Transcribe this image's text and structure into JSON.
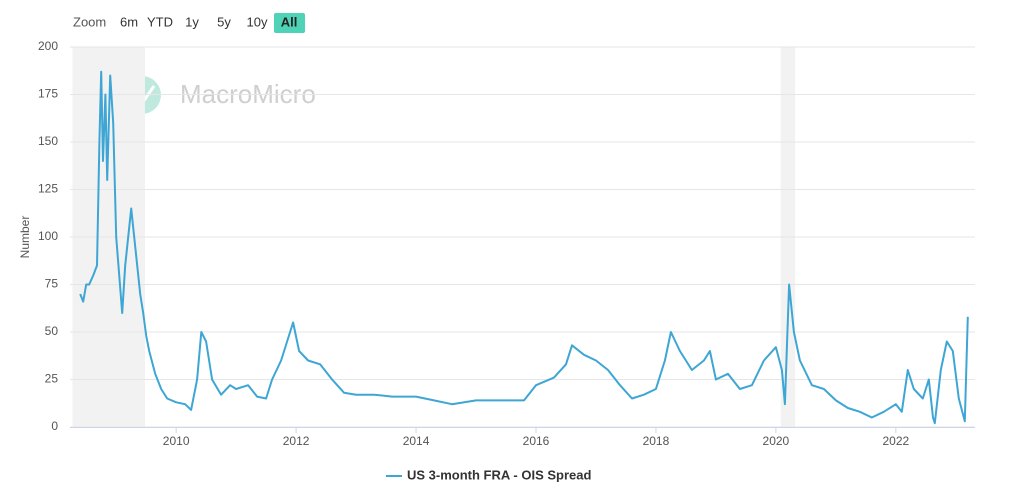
{
  "chart_data": {
    "type": "line",
    "zoom_label": "Zoom",
    "zoom_buttons": [
      "6m",
      "YTD",
      "1y",
      "5y",
      "10y",
      "All"
    ],
    "active_button": "All",
    "watermark": "MacroMicro",
    "y_label": "Number",
    "x": [
      2008.4,
      2008.45,
      2008.5,
      2008.55,
      2008.62,
      2008.68,
      2008.72,
      2008.75,
      2008.78,
      2008.82,
      2008.85,
      2008.9,
      2008.95,
      2009.0,
      2009.05,
      2009.1,
      2009.15,
      2009.2,
      2009.25,
      2009.3,
      2009.35,
      2009.4,
      2009.45,
      2009.5,
      2009.55,
      2009.65,
      2009.75,
      2009.85,
      2010.0,
      2010.15,
      2010.25,
      2010.35,
      2010.42,
      2010.5,
      2010.6,
      2010.75,
      2010.9,
      2011.0,
      2011.2,
      2011.35,
      2011.5,
      2011.6,
      2011.75,
      2011.85,
      2011.95,
      2012.05,
      2012.2,
      2012.4,
      2012.6,
      2012.8,
      2013.0,
      2013.3,
      2013.6,
      2014.0,
      2014.3,
      2014.6,
      2015.0,
      2015.5,
      2015.8,
      2016.0,
      2016.3,
      2016.5,
      2016.6,
      2016.8,
      2017.0,
      2017.2,
      2017.4,
      2017.6,
      2017.8,
      2018.0,
      2018.15,
      2018.25,
      2018.4,
      2018.6,
      2018.8,
      2018.9,
      2019.0,
      2019.2,
      2019.4,
      2019.6,
      2019.8,
      2020.0,
      2020.1,
      2020.15,
      2020.22,
      2020.3,
      2020.4,
      2020.6,
      2020.8,
      2021.0,
      2021.2,
      2021.4,
      2021.6,
      2021.8,
      2022.0,
      2022.1,
      2022.2,
      2022.3,
      2022.45,
      2022.55,
      2022.62,
      2022.65,
      2022.75,
      2022.85,
      2022.95,
      2023.05,
      2023.15,
      2023.2
    ],
    "series": [
      {
        "name": "US 3-month FRA - OIS Spread",
        "color": "#3ea6d4",
        "values": [
          70,
          66,
          75,
          75,
          80,
          85,
          150,
          187,
          140,
          175,
          130,
          185,
          160,
          100,
          80,
          60,
          85,
          100,
          115,
          100,
          85,
          70,
          60,
          48,
          40,
          28,
          20,
          15,
          13,
          12,
          9,
          25,
          50,
          45,
          25,
          17,
          22,
          20,
          22,
          16,
          15,
          25,
          35,
          45,
          55,
          40,
          35,
          33,
          25,
          18,
          17,
          17,
          16,
          16,
          14,
          12,
          14,
          14,
          14,
          22,
          26,
          33,
          43,
          38,
          35,
          30,
          22,
          15,
          17,
          20,
          35,
          50,
          40,
          30,
          35,
          40,
          25,
          28,
          20,
          22,
          35,
          42,
          30,
          12,
          75,
          50,
          35,
          22,
          20,
          14,
          10,
          8,
          5,
          8,
          12,
          8,
          30,
          20,
          15,
          25,
          5,
          2,
          30,
          45,
          40,
          15,
          3,
          58
        ]
      }
    ],
    "shaded_regions": [
      [
        2008.27,
        2009.48
      ],
      [
        2020.08,
        2020.32
      ]
    ],
    "xlim": [
      2008.23,
      2023.32
    ],
    "xticks": [
      2010,
      2012,
      2014,
      2016,
      2018,
      2020,
      2022
    ],
    "ylim": [
      0,
      200
    ],
    "yticks": [
      0,
      25,
      50,
      75,
      100,
      125,
      150,
      175,
      200
    ],
    "grid": true
  }
}
